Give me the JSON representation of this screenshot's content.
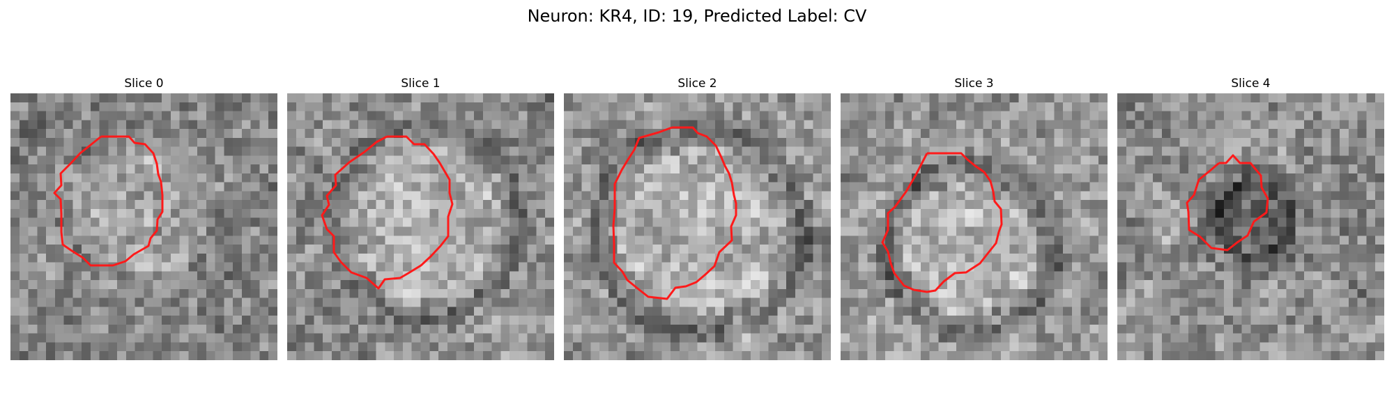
{
  "figure": {
    "title": "Neuron: KR4, ID: 19, Predicted Label: CV",
    "contour_color": "#ff1a1a"
  },
  "slices": [
    {
      "title": "Slice 0",
      "image": "grayscale-noise-patch",
      "contour": "outlined-vesicle"
    },
    {
      "title": "Slice 1",
      "image": "grayscale-noise-patch",
      "contour": "outlined-vesicle"
    },
    {
      "title": "Slice 2",
      "image": "grayscale-noise-patch",
      "contour": "outlined-vesicle"
    },
    {
      "title": "Slice 3",
      "image": "grayscale-noise-patch",
      "contour": "outlined-vesicle"
    },
    {
      "title": "Slice 4",
      "image": "grayscale-noise-patch",
      "contour": "outlined-vesicle"
    }
  ]
}
